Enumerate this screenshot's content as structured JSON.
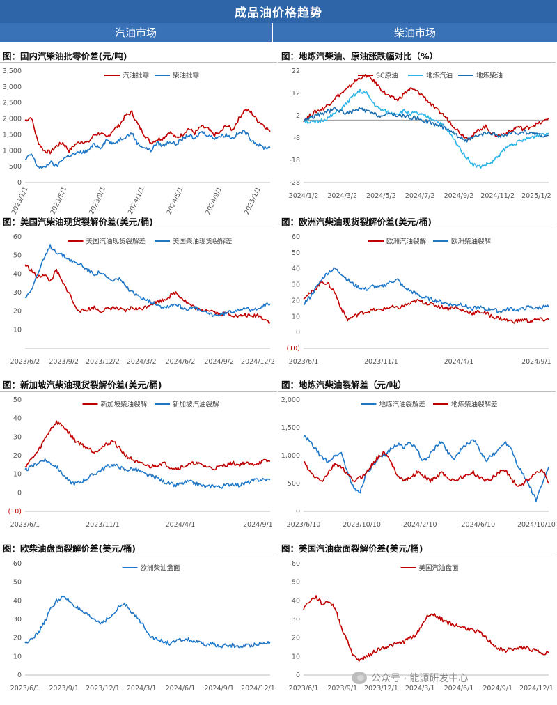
{
  "header": {
    "title": "成品油价格趋势",
    "left_section": "汽油市场",
    "right_section": "柴油市场"
  },
  "watermark": {
    "text": "公众号 · 能源研发中心"
  },
  "colors": {
    "red": "#c00000",
    "blue": "#1f77c8",
    "lightblue": "#2bb4e8",
    "midblue": "#1a6fb3"
  },
  "chart_data": [
    {
      "title": "图：国内汽柴油批零价差(元/吨)",
      "type": "line",
      "ylim": [
        0,
        3500
      ],
      "yticks": [
        "0",
        "500",
        "1,000",
        "1,500",
        "2,000",
        "2,500",
        "3,000",
        "3,500"
      ],
      "xticks": [
        "2023/1/1",
        "2023/5/1",
        "2023/9/1",
        "2024/1/1",
        "2024/5/1",
        "2024/9/1",
        "2025/1/1"
      ],
      "xrotate": true,
      "series": [
        {
          "name": "汽油批零",
          "color": "#c00000",
          "values": [
            1950,
            2050,
            1300,
            1000,
            950,
            1150,
            1250,
            1000,
            1200,
            1300,
            1250,
            1500,
            1550,
            1400,
            1650,
            1800,
            2100,
            2200,
            1800,
            1500,
            1250,
            1350,
            1400,
            1600,
            1400,
            1500,
            1700,
            1550,
            1750,
            1700,
            1500,
            1550,
            1800,
            1650,
            2000,
            2300,
            2200,
            1950,
            1800,
            1600
          ]
        },
        {
          "name": "柴油批零",
          "color": "#1f77c8",
          "values": [
            700,
            900,
            500,
            450,
            650,
            500,
            750,
            850,
            900,
            950,
            1000,
            1200,
            1100,
            1350,
            1200,
            1350,
            1450,
            1550,
            1200,
            1100,
            1000,
            1250,
            1150,
            1300,
            1200,
            1350,
            1500,
            1350,
            1600,
            1500,
            1400,
            1450,
            1500,
            1400,
            1550,
            1600,
            1350,
            1200,
            1100,
            1100
          ]
        }
      ]
    },
    {
      "title": "图：地炼汽柴油、原油涨跌幅对比（%）",
      "type": "line",
      "ylim": [
        -28,
        22
      ],
      "yticks": [
        "-28",
        "-18",
        "-8",
        "2",
        "12",
        "22"
      ],
      "xticks": [
        "2024/1/2",
        "2024/3/2",
        "2024/5/2",
        "2024/7/2",
        "2024/9/2",
        "2024/11/2",
        "2025/1/2"
      ],
      "baseline": 0,
      "series": [
        {
          "name": "SC原油",
          "color": "#c00000",
          "values": [
            0,
            2,
            4,
            5,
            7,
            10,
            12,
            14,
            17,
            19,
            20,
            18,
            15,
            12,
            10,
            9,
            12,
            14,
            13,
            11,
            8,
            5,
            3,
            0,
            -3,
            -6,
            -8,
            -7,
            -4,
            -3,
            -6,
            -7,
            -6,
            -5,
            -3,
            -4,
            -3,
            -2,
            -1,
            1
          ]
        },
        {
          "name": "地炼汽油",
          "color": "#2bb4e8",
          "values": [
            0,
            -1,
            -1,
            0,
            1,
            3,
            5,
            8,
            11,
            13,
            12,
            8,
            5,
            4,
            3,
            3,
            4,
            3,
            3,
            2,
            1,
            0,
            -2,
            -5,
            -9,
            -13,
            -17,
            -20,
            -21,
            -20,
            -19,
            -16,
            -13,
            -11,
            -10,
            -9,
            -8,
            -7,
            -6,
            -6
          ]
        },
        {
          "name": "地炼柴油",
          "color": "#1a6fb3",
          "values": [
            0,
            1,
            2,
            3,
            4,
            5,
            4,
            3,
            4,
            5,
            4,
            3,
            2,
            2,
            3,
            2,
            2,
            1,
            1,
            0,
            -1,
            -2,
            -3,
            -4,
            -6,
            -8,
            -9,
            -8,
            -7,
            -6,
            -6,
            -7,
            -7,
            -6,
            -6,
            -5,
            -6,
            -6,
            -7,
            -7
          ]
        }
      ]
    },
    {
      "title": "图：美国汽柴油现货裂解价差(美元/桶)",
      "type": "line",
      "ylim": [
        0,
        60
      ],
      "yticks": [
        "10",
        "20",
        "30",
        "40",
        "50",
        "60"
      ],
      "xticks": [
        "2023/6/2",
        "2023/9/2",
        "2023/12/2",
        "2024/3/2",
        "2024/6/2",
        "2024/9/2",
        "2024/12/2"
      ],
      "series": [
        {
          "name": "美国汽油现货裂解差",
          "color": "#c00000",
          "values": [
            45,
            42,
            38,
            40,
            36,
            42,
            35,
            30,
            22,
            20,
            21,
            22,
            20,
            21,
            22,
            21,
            20,
            22,
            21,
            22,
            24,
            25,
            26,
            28,
            30,
            27,
            24,
            22,
            20,
            21,
            20,
            18,
            19,
            18,
            17,
            18,
            17,
            18,
            16,
            14
          ]
        },
        {
          "name": "美国柴油现货裂解差",
          "color": "#1f77c8",
          "values": [
            27,
            32,
            40,
            48,
            55,
            52,
            50,
            48,
            46,
            45,
            42,
            40,
            41,
            38,
            36,
            38,
            33,
            30,
            28,
            27,
            25,
            24,
            22,
            23,
            24,
            22,
            21,
            22,
            20,
            19,
            18,
            18,
            19,
            20,
            21,
            22,
            20,
            22,
            23,
            24
          ]
        }
      ]
    },
    {
      "title": "图：欧洲汽柴油现货裂解价差(美元/桶)",
      "type": "line",
      "ylim": [
        -10,
        60
      ],
      "yticks": [
        "(10)",
        "0",
        "10",
        "20",
        "30",
        "40",
        "50",
        "60"
      ],
      "xticks": [
        "2023/6/1",
        "2023/11/1",
        "2024/4/1",
        "2024/9/1"
      ],
      "series": [
        {
          "name": "欧洲汽油裂解",
          "color": "#c00000",
          "values": [
            22,
            24,
            28,
            32,
            30,
            25,
            15,
            8,
            10,
            12,
            13,
            14,
            14,
            15,
            16,
            15,
            17,
            18,
            20,
            19,
            18,
            17,
            16,
            15,
            16,
            14,
            13,
            12,
            13,
            12,
            10,
            9,
            8,
            7,
            7,
            8,
            7,
            8,
            8,
            8
          ]
        },
        {
          "name": "欧洲柴油裂解",
          "color": "#1f77c8",
          "values": [
            18,
            22,
            28,
            34,
            38,
            40,
            37,
            33,
            30,
            28,
            27,
            29,
            28,
            30,
            32,
            33,
            28,
            26,
            24,
            22,
            21,
            20,
            19,
            18,
            17,
            18,
            16,
            15,
            16,
            14,
            15,
            13,
            14,
            15,
            14,
            15,
            16,
            15,
            16,
            16
          ]
        }
      ]
    },
    {
      "title": "图：新加坡汽柴油现货裂解价差(美元/桶)",
      "type": "line",
      "ylim": [
        -10,
        50
      ],
      "yticks": [
        "(10)",
        "0",
        "10",
        "20",
        "30",
        "40",
        "50"
      ],
      "xticks": [
        "2023/6/1",
        "2023/11/1",
        "2024/4/1",
        "2024/9/1"
      ],
      "series": [
        {
          "name": "新加坡柴油裂解",
          "color": "#c00000",
          "values": [
            14,
            18,
            22,
            28,
            34,
            38,
            36,
            32,
            28,
            26,
            24,
            22,
            24,
            26,
            28,
            24,
            20,
            18,
            16,
            15,
            14,
            15,
            16,
            14,
            13,
            14,
            15,
            16,
            15,
            14,
            13,
            14,
            15,
            16,
            15,
            16,
            15,
            16,
            17,
            17
          ]
        },
        {
          "name": "新加坡汽油裂解",
          "color": "#1f77c8",
          "values": [
            12,
            14,
            16,
            18,
            16,
            14,
            10,
            6,
            5,
            6,
            8,
            10,
            12,
            14,
            15,
            14,
            12,
            13,
            12,
            10,
            9,
            8,
            6,
            5,
            4,
            5,
            6,
            5,
            4,
            3,
            4,
            3,
            4,
            5,
            4,
            5,
            6,
            7,
            7,
            7
          ]
        }
      ]
    },
    {
      "title": "图：地炼汽柴油裂解差（元/吨）",
      "type": "line",
      "ylim": [
        0,
        2000
      ],
      "yticks": [
        "0",
        "500",
        "1,000",
        "1,500",
        "2,000"
      ],
      "xticks": [
        "2023/6/10",
        "2023/10/10",
        "2024/2/10",
        "2024/6/10",
        "2024/10/10"
      ],
      "series": [
        {
          "name": "地炼汽油裂解差",
          "color": "#1f77c8",
          "values": [
            1350,
            1250,
            1100,
            950,
            900,
            1000,
            1050,
            700,
            400,
            350,
            700,
            800,
            950,
            1000,
            1150,
            1200,
            1150,
            1250,
            1100,
            900,
            1000,
            1150,
            1250,
            1050,
            950,
            1100,
            1200,
            1300,
            1100,
            900,
            1000,
            1100,
            1250,
            1150,
            850,
            650,
            450,
            200,
            500,
            800
          ]
        },
        {
          "name": "地炼柴油裂解差",
          "color": "#c00000",
          "values": [
            900,
            700,
            600,
            550,
            700,
            850,
            800,
            650,
            550,
            600,
            700,
            850,
            1000,
            1050,
            850,
            650,
            550,
            600,
            700,
            650,
            550,
            600,
            700,
            600,
            550,
            600,
            650,
            700,
            600,
            550,
            600,
            700,
            750,
            600,
            450,
            500,
            600,
            700,
            750,
            500
          ]
        }
      ]
    },
    {
      "title": "图：欧柴油盘面裂解价差(美元/桶)",
      "type": "line",
      "ylim": [
        0,
        60
      ],
      "yticks": [
        "0",
        "10",
        "20",
        "30",
        "40",
        "50",
        "60"
      ],
      "xticks": [
        "2023/6/1",
        "2023/9/1",
        "2023/12/1",
        "2024/3/1",
        "2024/6/1",
        "2024/9/1",
        "2024/12/1"
      ],
      "series": [
        {
          "name": "欧洲柴油盘面",
          "color": "#1f77c8",
          "values": [
            17,
            20,
            22,
            28,
            35,
            40,
            42,
            40,
            37,
            34,
            32,
            30,
            28,
            30,
            32,
            37,
            38,
            34,
            30,
            26,
            21,
            19,
            18,
            17,
            18,
            19,
            19,
            18,
            17,
            16,
            17,
            15,
            16,
            16,
            15,
            16,
            16,
            17,
            17,
            18
          ]
        }
      ]
    },
    {
      "title": "图：美国汽油盘面裂解价差(美元/桶)",
      "type": "line",
      "ylim": [
        0,
        60
      ],
      "yticks": [
        "0",
        "10",
        "20",
        "30",
        "40",
        "50",
        "60"
      ],
      "xticks": [
        "2023/6/1",
        "2023/9/1",
        "2023/12/1",
        "2024/3/1",
        "2024/6/1",
        "2024/9/1",
        "2024/12/1"
      ],
      "series": [
        {
          "name": "美国汽油盘面",
          "color": "#c00000",
          "values": [
            36,
            40,
            42,
            38,
            40,
            36,
            26,
            18,
            10,
            8,
            10,
            12,
            14,
            15,
            16,
            17,
            18,
            20,
            22,
            28,
            33,
            32,
            30,
            28,
            27,
            26,
            25,
            24,
            23,
            20,
            17,
            14,
            13,
            14,
            14,
            15,
            14,
            13,
            12,
            12
          ]
        }
      ]
    }
  ]
}
